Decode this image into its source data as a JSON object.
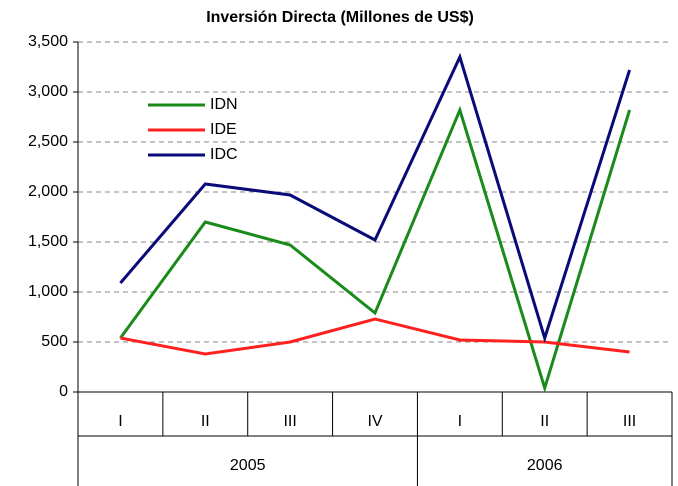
{
  "chart_data": {
    "type": "line",
    "title": "Inversión Directa (Millones de US$)",
    "categories": [
      "I",
      "II",
      "III",
      "IV",
      "I",
      "II",
      "III"
    ],
    "category_groups": [
      "2005",
      "2005",
      "2005",
      "2005",
      "2006",
      "2006",
      "2006"
    ],
    "series": [
      {
        "name": "IDN",
        "color": "#1a8a1a",
        "values": [
          540,
          1700,
          1470,
          790,
          2820,
          40,
          2820
        ]
      },
      {
        "name": "IDE",
        "color": "#ff2020",
        "values": [
          540,
          380,
          500,
          730,
          520,
          500,
          400
        ]
      },
      {
        "name": "IDC",
        "color": "#0a0a78",
        "values": [
          1090,
          2080,
          1970,
          1520,
          3350,
          540,
          3220
        ]
      }
    ],
    "ylim": [
      0,
      3500
    ],
    "yticks": [
      0,
      500,
      {
        "value": 1000,
        "label": "1,000"
      },
      {
        "value": 1500,
        "label": "1,500"
      },
      {
        "value": 2000,
        "label": "2,000"
      },
      {
        "value": 2500,
        "label": "2,500"
      },
      {
        "value": 3000,
        "label": "3,000"
      },
      {
        "value": 3500,
        "label": "3,500"
      }
    ],
    "grid": true,
    "legend": "upper-left"
  }
}
